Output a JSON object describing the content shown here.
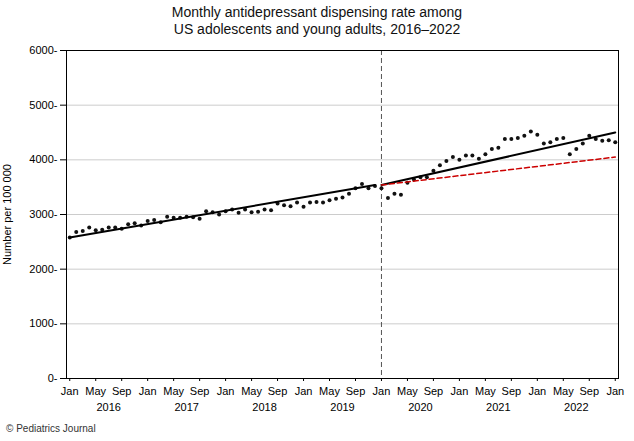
{
  "chart_data": {
    "type": "scatter",
    "title": "Monthly antidepressant dispensing rate among\nUS adolescents and young adults, 2016–2022",
    "ylabel": "Number per 100 000",
    "caption": "© Pediatrics Journal",
    "xlim": [
      -0.5,
      84.5
    ],
    "xticks": [
      {
        "value": 0,
        "label": "Jan"
      },
      {
        "value": 4,
        "label": "May"
      },
      {
        "value": 8,
        "label": "Sep"
      },
      {
        "value": 12,
        "label": "Jan"
      },
      {
        "value": 16,
        "label": "May"
      },
      {
        "value": 20,
        "label": "Sep"
      },
      {
        "value": 24,
        "label": "Jan"
      },
      {
        "value": 28,
        "label": "May"
      },
      {
        "value": 32,
        "label": "Sep"
      },
      {
        "value": 36,
        "label": "Jan"
      },
      {
        "value": 40,
        "label": "May"
      },
      {
        "value": 44,
        "label": "Sep"
      },
      {
        "value": 48,
        "label": "Jan"
      },
      {
        "value": 52,
        "label": "May"
      },
      {
        "value": 56,
        "label": "Sep"
      },
      {
        "value": 60,
        "label": "Jan"
      },
      {
        "value": 64,
        "label": "May"
      },
      {
        "value": 68,
        "label": "Sep"
      },
      {
        "value": 72,
        "label": "Jan"
      },
      {
        "value": 76,
        "label": "May"
      },
      {
        "value": 80,
        "label": "Sep"
      },
      {
        "value": 84,
        "label": "Jan"
      }
    ],
    "x2lim": [
      -0.5,
      84.5
    ],
    "x2ticks": [
      {
        "value": 6,
        "label": "2016"
      },
      {
        "value": 18,
        "label": "2017"
      },
      {
        "value": 30,
        "label": "2018"
      },
      {
        "value": 42,
        "label": "2019"
      },
      {
        "value": 54,
        "label": "2020"
      },
      {
        "value": 66,
        "label": "2021"
      },
      {
        "value": 78,
        "label": "2022"
      }
    ],
    "ylim": [
      0,
      6000
    ],
    "yticks": [
      {
        "value": 0,
        "label": "0-"
      },
      {
        "value": 1000,
        "label": "1000-"
      },
      {
        "value": 2000,
        "label": "2000-"
      },
      {
        "value": 3000,
        "label": "3000-"
      },
      {
        "value": 4000,
        "label": "4000-"
      },
      {
        "value": 5000,
        "label": "5000-"
      },
      {
        "value": 6000,
        "label": "6000-"
      }
    ],
    "grid": "y",
    "vlines": [
      {
        "x": 48,
        "line_style": "dashed"
      }
    ],
    "series": [
      {
        "color": "#111111",
        "x": [
          0,
          1,
          2,
          3,
          4,
          5,
          6,
          7,
          8,
          9,
          10,
          11,
          12,
          13,
          14,
          15,
          16,
          17,
          18,
          19,
          20,
          21,
          22,
          23,
          24,
          25,
          26,
          27,
          28,
          29,
          30,
          31,
          32,
          33,
          34,
          35,
          36,
          37,
          38,
          39,
          40,
          41,
          42,
          43,
          44,
          45,
          46,
          47
        ],
        "values": [
          2580,
          2680,
          2700,
          2760,
          2710,
          2720,
          2760,
          2760,
          2740,
          2820,
          2840,
          2800,
          2880,
          2900,
          2860,
          2960,
          2940,
          2940,
          2960,
          2950,
          2920,
          3060,
          3040,
          3000,
          3060,
          3090,
          3030,
          3090,
          3040,
          3050,
          3090,
          3080,
          3200,
          3170,
          3150,
          3220,
          3140,
          3220,
          3230,
          3220,
          3260,
          3290,
          3310,
          3380,
          3480,
          3560,
          3480,
          3520
        ]
      },
      {
        "color": "#111111",
        "x": [
          48,
          49,
          50,
          51,
          52,
          53,
          54,
          55,
          56,
          57,
          58,
          59,
          60,
          61,
          62,
          63,
          64,
          65,
          66,
          67,
          68,
          69,
          70,
          71,
          72,
          73,
          74,
          75,
          76,
          77,
          78,
          79,
          80,
          81,
          82,
          83,
          84
        ],
        "values": [
          3480,
          3300,
          3380,
          3360,
          3580,
          3640,
          3680,
          3680,
          3800,
          3900,
          3980,
          4050,
          4000,
          4080,
          4080,
          4020,
          4100,
          4200,
          4220,
          4380,
          4380,
          4400,
          4440,
          4520,
          4460,
          4300,
          4320,
          4380,
          4400,
          4100,
          4200,
          4300,
          4440,
          4380,
          4350,
          4360,
          4320
        ]
      },
      {
        "type": "line",
        "color": "#000000",
        "x": [
          0,
          47
        ],
        "values": [
          2580,
          3540
        ]
      },
      {
        "type": "line",
        "color": "#000000",
        "x": [
          48,
          84
        ],
        "values": [
          3540,
          4500
        ]
      },
      {
        "type": "line",
        "color": "#cc0000",
        "line_style": "dashed",
        "x": [
          48,
          84
        ],
        "values": [
          3540,
          4050
        ]
      }
    ]
  }
}
